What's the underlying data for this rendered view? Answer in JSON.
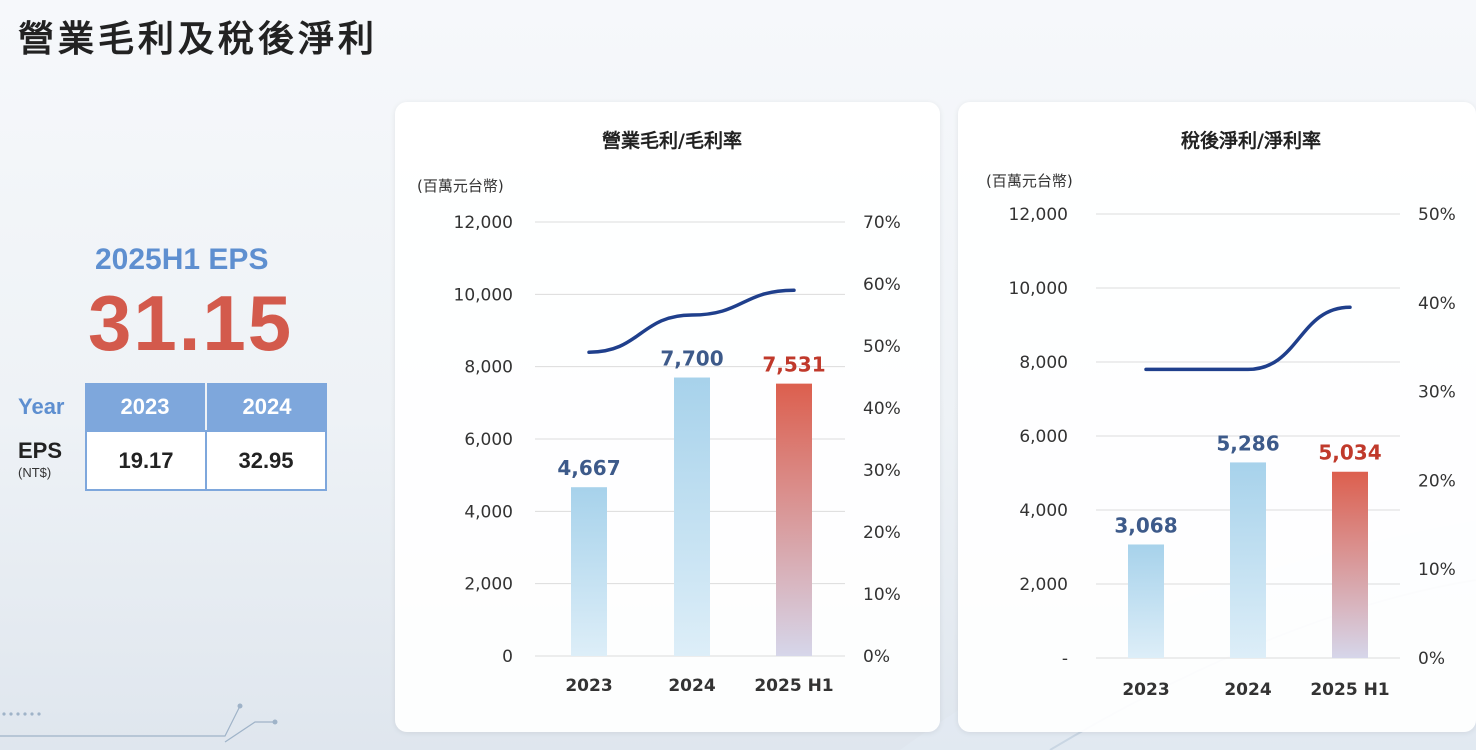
{
  "page": {
    "title": "營業毛利及稅後淨利"
  },
  "eps": {
    "title": "2025H1 EPS",
    "value": "31.15",
    "table": {
      "year_label": "Year",
      "row_label": "EPS",
      "row_unit": "(NT$)",
      "years": [
        "2023",
        "2024"
      ],
      "values": [
        "19.17",
        "32.95"
      ]
    }
  },
  "colors": {
    "accent_blue": "#7ea7dc",
    "eps_red": "#d35a4c",
    "bar_blue_top": "#a7d2eb",
    "bar_blue_bottom": "#ddeef8",
    "bar_red_top": "#dc5f4e",
    "bar_red_bottom": "#d6d6ea",
    "line_navy": "#1f3f8c",
    "label_blue": "#3d5a8a",
    "label_red": "#c0392b"
  },
  "chart_data": [
    {
      "type": "bar",
      "title": "營業毛利/毛利率",
      "unit_label": "(百萬元台幣)",
      "categories": [
        "2023",
        "2024",
        "2025 H1"
      ],
      "series": [
        {
          "values": [
            4667,
            7700,
            7531
          ]
        },
        {
          "values": [
            49,
            55,
            59
          ],
          "type": "line"
        }
      ],
      "data_labels": [
        "4,667",
        "7,700",
        "7,531"
      ],
      "ylim": [
        0,
        12000
      ],
      "y_ticks": [
        "0",
        "2,000",
        "4,000",
        "6,000",
        "8,000",
        "10,000",
        "12,000"
      ],
      "y2lim": [
        0,
        70
      ],
      "y2_ticks": [
        "0%",
        "10%",
        "20%",
        "30%",
        "40%",
        "50%",
        "60%",
        "70%"
      ],
      "grid": true
    },
    {
      "type": "bar",
      "title": "稅後淨利/淨利率",
      "unit_label": "(百萬元台幣)",
      "categories": [
        "2023",
        "2024",
        "2025 H1"
      ],
      "series": [
        {
          "values": [
            3068,
            5286,
            5034
          ]
        },
        {
          "values": [
            32.5,
            32.5,
            39.5
          ],
          "type": "line"
        }
      ],
      "data_labels": [
        "3,068",
        "5,286",
        "5,034"
      ],
      "ylim": [
        0,
        12000
      ],
      "y_ticks": [
        "-",
        "2,000",
        "4,000",
        "6,000",
        "8,000",
        "10,000",
        "12,000"
      ],
      "y2lim": [
        0,
        50
      ],
      "y2_ticks": [
        "0%",
        "10%",
        "20%",
        "30%",
        "40%",
        "50%"
      ],
      "grid": true
    }
  ]
}
